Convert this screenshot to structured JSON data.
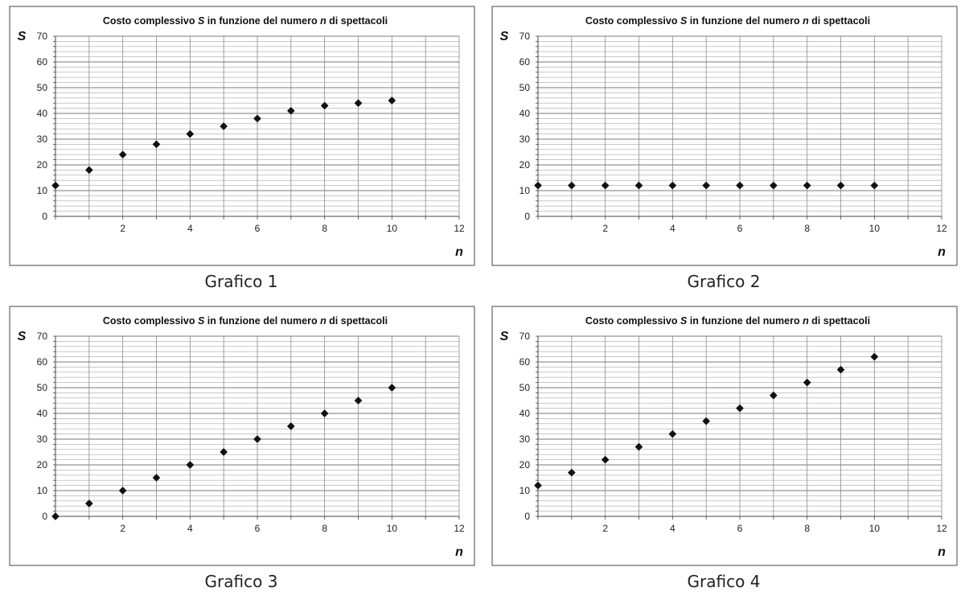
{
  "chart_data": [
    {
      "type": "scatter",
      "title": "Costo complessivo S in funzione del numero n di spettacoli",
      "title_parts": [
        {
          "text": "Costo complessivo ",
          "italic": false
        },
        {
          "text": "S",
          "italic": true
        },
        {
          "text": " in funzione del numero ",
          "italic": false
        },
        {
          "text": "n",
          "italic": true
        },
        {
          "text": " di spettacoli",
          "italic": false
        }
      ],
      "caption": "Grafico 1",
      "xlabel": "n",
      "ylabel": "S",
      "xlim": [
        0,
        12
      ],
      "ylim": [
        0,
        70
      ],
      "xticks": [
        2,
        4,
        6,
        8,
        10,
        12
      ],
      "yticks": [
        0,
        10,
        20,
        30,
        40,
        50,
        60,
        70
      ],
      "grid": true,
      "marker": "diamond",
      "color": "#111111",
      "x": [
        0,
        1,
        2,
        3,
        4,
        5,
        6,
        7,
        8,
        9,
        10
      ],
      "y": [
        12,
        18,
        24,
        28,
        32,
        35,
        38,
        41,
        43,
        44,
        45
      ]
    },
    {
      "type": "scatter",
      "title": "Costo complessivo S in funzione del numero n di spettacoli",
      "title_parts": [
        {
          "text": "Costo complessivo ",
          "italic": false
        },
        {
          "text": "S",
          "italic": true
        },
        {
          "text": " in funzione del numero ",
          "italic": false
        },
        {
          "text": "n",
          "italic": true
        },
        {
          "text": " di spettacoli",
          "italic": false
        }
      ],
      "caption": "Grafico 2",
      "xlabel": "n",
      "ylabel": "S",
      "xlim": [
        0,
        12
      ],
      "ylim": [
        0,
        70
      ],
      "xticks": [
        2,
        4,
        6,
        8,
        10,
        12
      ],
      "yticks": [
        0,
        10,
        20,
        30,
        40,
        50,
        60,
        70
      ],
      "grid": true,
      "marker": "diamond",
      "color": "#111111",
      "x": [
        0,
        1,
        2,
        3,
        4,
        5,
        6,
        7,
        8,
        9,
        10
      ],
      "y": [
        12,
        12,
        12,
        12,
        12,
        12,
        12,
        12,
        12,
        12,
        12
      ]
    },
    {
      "type": "scatter",
      "title": "Costo complessivo S in funzione del numero n di spettacoli",
      "title_parts": [
        {
          "text": "Costo complessivo ",
          "italic": false
        },
        {
          "text": "S",
          "italic": true
        },
        {
          "text": " in funzione del numero ",
          "italic": false
        },
        {
          "text": "n",
          "italic": true
        },
        {
          "text": " di spettacoli",
          "italic": false
        }
      ],
      "caption": "Grafico 3",
      "xlabel": "n",
      "ylabel": "S",
      "xlim": [
        0,
        12
      ],
      "ylim": [
        0,
        70
      ],
      "xticks": [
        2,
        4,
        6,
        8,
        10,
        12
      ],
      "yticks": [
        0,
        10,
        20,
        30,
        40,
        50,
        60,
        70
      ],
      "grid": true,
      "marker": "diamond",
      "color": "#111111",
      "x": [
        0,
        1,
        2,
        3,
        4,
        5,
        6,
        7,
        8,
        9,
        10
      ],
      "y": [
        0,
        5,
        10,
        15,
        20,
        25,
        30,
        35,
        40,
        45,
        50
      ]
    },
    {
      "type": "scatter",
      "title": "Costo complessivo S in funzione del numero n di spettacoli",
      "title_parts": [
        {
          "text": "Costo complessivo ",
          "italic": false
        },
        {
          "text": "S",
          "italic": true
        },
        {
          "text": " in funzione del numero ",
          "italic": false
        },
        {
          "text": "n",
          "italic": true
        },
        {
          "text": " di spettacoli",
          "italic": false
        }
      ],
      "caption": "Grafico 4",
      "xlabel": "n",
      "ylabel": "S",
      "xlim": [
        0,
        12
      ],
      "ylim": [
        0,
        70
      ],
      "xticks": [
        2,
        4,
        6,
        8,
        10,
        12
      ],
      "yticks": [
        0,
        10,
        20,
        30,
        40,
        50,
        60,
        70
      ],
      "grid": true,
      "marker": "diamond",
      "color": "#111111",
      "x": [
        0,
        1,
        2,
        3,
        4,
        5,
        6,
        7,
        8,
        9,
        10
      ],
      "y": [
        12,
        17,
        22,
        27,
        32,
        37,
        42,
        47,
        52,
        57,
        62
      ]
    }
  ]
}
